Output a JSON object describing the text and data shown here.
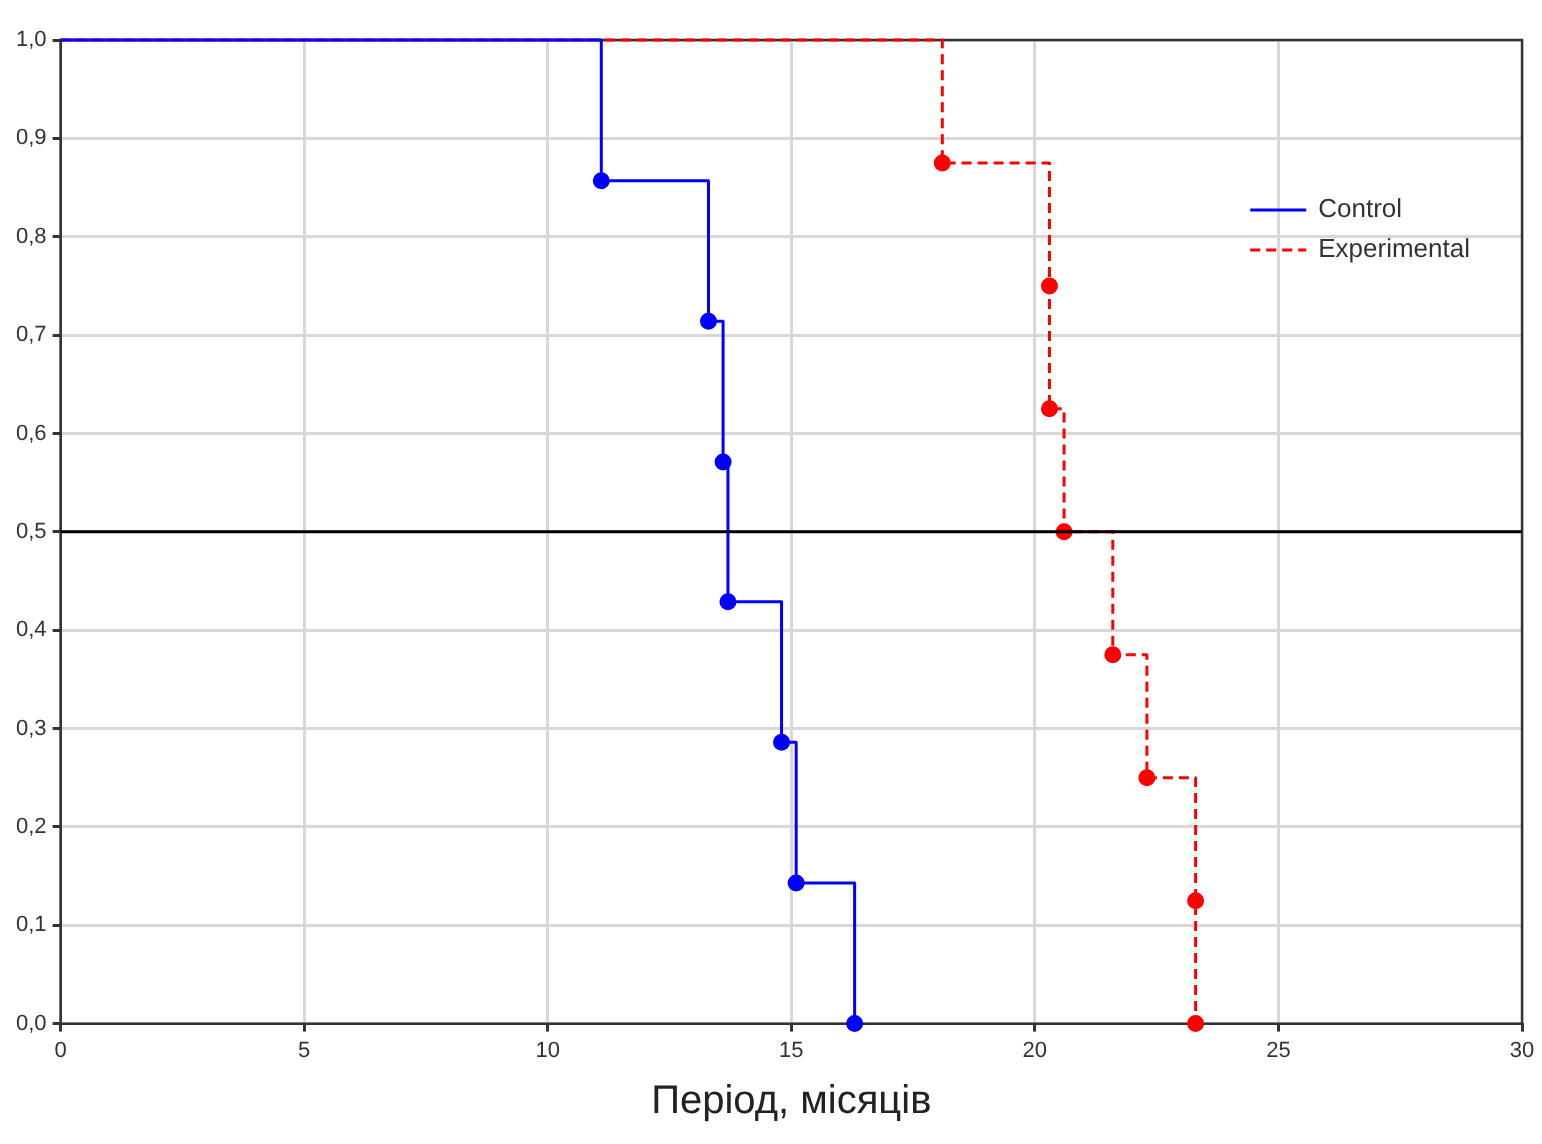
{
  "chart_data": {
    "type": "step",
    "xlabel": "Період, місяців",
    "xlim": [
      0,
      30
    ],
    "xticks": [
      0,
      5,
      10,
      15,
      20,
      25,
      30
    ],
    "ylim": [
      0,
      1
    ],
    "yticks": [
      {
        "value": 0,
        "label": "0,0"
      },
      {
        "value": 0.1,
        "label": "0,1"
      },
      {
        "value": 0.2,
        "label": "0,2"
      },
      {
        "value": 0.3,
        "label": "0,3"
      },
      {
        "value": 0.4,
        "label": "0,4"
      },
      {
        "value": 0.5,
        "label": "0,5"
      },
      {
        "value": 0.6,
        "label": "0,6"
      },
      {
        "value": 0.7,
        "label": "0,7"
      },
      {
        "value": 0.8,
        "label": "0,8"
      },
      {
        "value": 0.9,
        "label": "0,9"
      },
      {
        "value": 1,
        "label": "1,0"
      }
    ],
    "grid": true,
    "legend": "top right",
    "marker": "circle",
    "ref_lines": [
      {
        "axis": "y",
        "value": 0.5,
        "color": "#000000"
      }
    ],
    "series": [
      {
        "name": "Control",
        "color": "#0000ff",
        "line_style": "solid",
        "x": [
          0,
          11.1,
          13.3,
          13.6,
          13.7,
          14.8,
          15.1,
          16.3
        ],
        "values": [
          1,
          0.857,
          0.714,
          0.571,
          0.429,
          0.286,
          0.143,
          0
        ]
      },
      {
        "name": "Experimental",
        "color": "#ff0000",
        "line_style": "dashed",
        "x": [
          0,
          18.1,
          20.3,
          20.3,
          20.6,
          21.6,
          22.3,
          23.3,
          23.3
        ],
        "values": [
          1,
          0.875,
          0.75,
          0.625,
          0.5,
          0.375,
          0.25,
          0.125,
          0
        ]
      }
    ]
  }
}
